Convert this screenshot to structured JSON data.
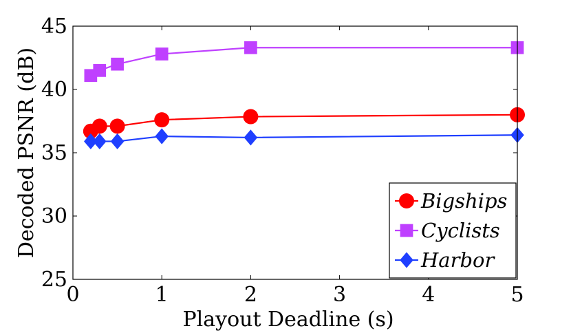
{
  "chart_data": {
    "type": "line",
    "title": "",
    "xlabel": "Playout Deadline (s)",
    "ylabel": "Decoded PSNR (dB)",
    "xlim": [
      0,
      5
    ],
    "ylim": [
      25,
      45
    ],
    "xticks": [
      0,
      1,
      2,
      3,
      4,
      5
    ],
    "yticks": [
      25,
      30,
      35,
      40,
      45
    ],
    "grid": false,
    "legend_position": "bottom-right",
    "series": [
      {
        "name": "Bigships",
        "color": "#ff0000",
        "marker": "circle",
        "x": [
          0.2,
          0.3,
          0.5,
          1,
          2,
          5
        ],
        "y": [
          36.7,
          37.1,
          37.1,
          37.6,
          37.85,
          38.0
        ]
      },
      {
        "name": "Cyclists",
        "color": "#bf40ff",
        "marker": "square",
        "x": [
          0.2,
          0.3,
          0.5,
          1,
          2,
          5
        ],
        "y": [
          41.1,
          41.5,
          42.0,
          42.8,
          43.3,
          43.3
        ]
      },
      {
        "name": "Harbor",
        "color": "#1f3fff",
        "marker": "diamond",
        "x": [
          0.2,
          0.3,
          0.5,
          1,
          2,
          5
        ],
        "y": [
          35.9,
          35.9,
          35.9,
          36.3,
          36.2,
          36.4
        ]
      }
    ]
  }
}
